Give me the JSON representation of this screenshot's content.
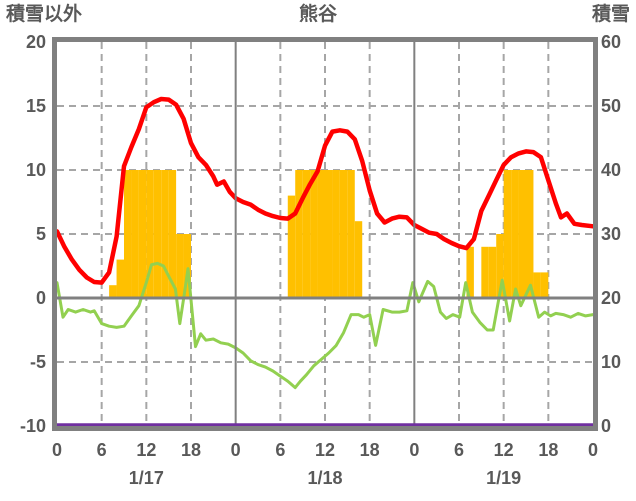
{
  "header": {
    "note": "weather chart for station Kumagaya, 3 days"
  },
  "colors": {
    "background": "#FFFFFF",
    "border": "#808080",
    "grid_dashed": "#A6A6A6",
    "zero_line": "#808080",
    "text": "#595959",
    "red_line": "#FF0000",
    "green_line": "#92D050",
    "orange_bars": "#FFC000",
    "purple_line": "#7030A0"
  },
  "chart_data": {
    "type": "combo",
    "title": "熊谷",
    "y_axis_left": {
      "title": "積雪以外",
      "min": -10,
      "max": 20,
      "tick_values": [
        20,
        15,
        10,
        5,
        0,
        -5,
        -10
      ],
      "tick_labels": [
        "20",
        "15",
        "10",
        "5",
        "0",
        "-5",
        "-10"
      ]
    },
    "y_axis_right": {
      "title": "積雪",
      "min": 0,
      "max": 60,
      "tick_values": [
        60,
        50,
        40,
        30,
        20,
        10,
        0
      ],
      "tick_labels": [
        "60",
        "50",
        "40",
        "30",
        "20",
        "10",
        "0"
      ]
    },
    "x_axis": {
      "unit": "hour",
      "min": 0,
      "max": 72,
      "tick_hours": [
        0,
        6,
        12,
        18,
        24,
        30,
        36,
        42,
        48,
        54,
        60,
        66,
        72
      ],
      "tick_labels": [
        "0",
        "6",
        "12",
        "18",
        "0",
        "6",
        "12",
        "18",
        "0",
        "6",
        "12",
        "18",
        "0"
      ],
      "day_labels": [
        {
          "label": "1/17",
          "center_hour": 12
        },
        {
          "label": "1/18",
          "center_hour": 36
        },
        {
          "label": "1/19",
          "center_hour": 60
        }
      ]
    },
    "grid": {
      "h_dashed_at": [
        15,
        10,
        5,
        -5
      ],
      "h_solid_at": [
        0
      ],
      "v_dashed_at": [
        6,
        12,
        18,
        30,
        36,
        42,
        54,
        60,
        66
      ],
      "v_solid_at": [
        24,
        48
      ]
    },
    "series": [
      {
        "id": "bars-orange",
        "type": "bar",
        "axis": "left",
        "color": "#FFC000",
        "bar_width_hours": 1,
        "data": [
          [
            7,
            1
          ],
          [
            8,
            3
          ],
          [
            9,
            10
          ],
          [
            10,
            10
          ],
          [
            11,
            10
          ],
          [
            12,
            10
          ],
          [
            13,
            10
          ],
          [
            14,
            10
          ],
          [
            15,
            10
          ],
          [
            16,
            5
          ],
          [
            17,
            5
          ],
          [
            31,
            8
          ],
          [
            32,
            10
          ],
          [
            33,
            10
          ],
          [
            34,
            10
          ],
          [
            35,
            10
          ],
          [
            36,
            10
          ],
          [
            37,
            10
          ],
          [
            38,
            10
          ],
          [
            39,
            10
          ],
          [
            40,
            6
          ],
          [
            55,
            4
          ],
          [
            57,
            4
          ],
          [
            58,
            4
          ],
          [
            59,
            5
          ],
          [
            60,
            10
          ],
          [
            61,
            10
          ],
          [
            62,
            10
          ],
          [
            63,
            10
          ],
          [
            64,
            2
          ],
          [
            65,
            2
          ]
        ]
      },
      {
        "id": "line-purple",
        "type": "line",
        "axis": "right",
        "color": "#7030A0",
        "width": 3.5,
        "data": [
          [
            0,
            0
          ],
          [
            72,
            0
          ]
        ]
      },
      {
        "id": "line-green",
        "type": "line",
        "axis": "left",
        "color": "#92D050",
        "width": 3,
        "data": [
          [
            0,
            1.2
          ],
          [
            0.8,
            -1.5
          ],
          [
            1.5,
            -0.9
          ],
          [
            2.5,
            -1.1
          ],
          [
            3.5,
            -0.9
          ],
          [
            4.5,
            -1.1
          ],
          [
            5,
            -1.0
          ],
          [
            6,
            -2.0
          ],
          [
            7,
            -2.2
          ],
          [
            8,
            -2.3
          ],
          [
            9,
            -2.2
          ],
          [
            10,
            -1.4
          ],
          [
            11,
            -0.6
          ],
          [
            12,
            1.2
          ],
          [
            12.7,
            2.6
          ],
          [
            13.5,
            2.7
          ],
          [
            14.3,
            2.5
          ],
          [
            15,
            1.7
          ],
          [
            15.9,
            0.7
          ],
          [
            16.5,
            -2.0
          ],
          [
            17.1,
            0.3
          ],
          [
            17.6,
            2.3
          ],
          [
            18.6,
            -3.8
          ],
          [
            19.3,
            -2.8
          ],
          [
            20,
            -3.3
          ],
          [
            21,
            -3.2
          ],
          [
            22,
            -3.5
          ],
          [
            23,
            -3.6
          ],
          [
            24,
            -3.9
          ],
          [
            25,
            -4.3
          ],
          [
            26,
            -4.9
          ],
          [
            27,
            -5.2
          ],
          [
            28,
            -5.4
          ],
          [
            29,
            -5.7
          ],
          [
            30,
            -6.1
          ],
          [
            31,
            -6.5
          ],
          [
            32,
            -7.0
          ],
          [
            32.7,
            -6.5
          ],
          [
            33.5,
            -6.0
          ],
          [
            34.5,
            -5.3
          ],
          [
            35.5,
            -4.8
          ],
          [
            36.5,
            -4.3
          ],
          [
            37.5,
            -3.7
          ],
          [
            38.5,
            -2.7
          ],
          [
            39.5,
            -1.3
          ],
          [
            40.5,
            -1.3
          ],
          [
            41.2,
            -1.5
          ],
          [
            42,
            -1.3
          ],
          [
            42.8,
            -3.7
          ],
          [
            43.8,
            -0.9
          ],
          [
            45,
            -1.1
          ],
          [
            46,
            -1.1
          ],
          [
            47,
            -1.0
          ],
          [
            47.8,
            1.2
          ],
          [
            48.6,
            -0.3
          ],
          [
            49.8,
            1.3
          ],
          [
            50.6,
            0.9
          ],
          [
            51.5,
            -1.1
          ],
          [
            52.3,
            -1.6
          ],
          [
            53.2,
            -1.3
          ],
          [
            54.1,
            -1.5
          ],
          [
            54.9,
            1.2
          ],
          [
            55.8,
            -1.1
          ],
          [
            56.8,
            -1.9
          ],
          [
            57.8,
            -2.5
          ],
          [
            58.6,
            -2.5
          ],
          [
            59.8,
            1.4
          ],
          [
            60.8,
            -1.8
          ],
          [
            61.6,
            0.7
          ],
          [
            62.3,
            -0.6
          ],
          [
            63.6,
            1.0
          ],
          [
            64.7,
            -1.5
          ],
          [
            65.5,
            -1.1
          ],
          [
            66.3,
            -1.4
          ],
          [
            67,
            -1.2
          ],
          [
            68,
            -1.3
          ],
          [
            69,
            -1.5
          ],
          [
            70,
            -1.2
          ],
          [
            71,
            -1.4
          ],
          [
            72,
            -1.3
          ]
        ]
      },
      {
        "id": "line-red",
        "type": "line",
        "axis": "left",
        "color": "#FF0000",
        "width": 4.5,
        "data": [
          [
            0,
            5.2
          ],
          [
            1,
            4.0
          ],
          [
            2,
            3.0
          ],
          [
            3,
            2.2
          ],
          [
            4,
            1.6
          ],
          [
            5,
            1.25
          ],
          [
            6,
            1.2
          ],
          [
            7,
            2.0
          ],
          [
            8,
            4.8
          ],
          [
            9,
            10.3
          ],
          [
            10,
            11.8
          ],
          [
            11,
            13.2
          ],
          [
            12,
            14.9
          ],
          [
            13,
            15.3
          ],
          [
            14,
            15.55
          ],
          [
            15,
            15.5
          ],
          [
            16,
            15.1
          ],
          [
            17,
            14.0
          ],
          [
            18,
            12.1
          ],
          [
            19,
            11.0
          ],
          [
            20,
            10.4
          ],
          [
            21,
            9.5
          ],
          [
            21.5,
            8.85
          ],
          [
            22.4,
            9.1
          ],
          [
            23.2,
            8.3
          ],
          [
            24,
            7.8
          ],
          [
            25,
            7.5
          ],
          [
            26,
            7.3
          ],
          [
            27,
            6.9
          ],
          [
            28,
            6.6
          ],
          [
            29,
            6.4
          ],
          [
            30,
            6.25
          ],
          [
            31,
            6.2
          ],
          [
            32,
            6.6
          ],
          [
            33,
            7.8
          ],
          [
            34,
            8.9
          ],
          [
            35,
            9.9
          ],
          [
            36,
            11.9
          ],
          [
            37,
            13.0
          ],
          [
            38,
            13.1
          ],
          [
            39,
            13.0
          ],
          [
            40,
            12.4
          ],
          [
            41,
            10.7
          ],
          [
            42,
            8.4
          ],
          [
            43,
            6.6
          ],
          [
            44,
            5.9
          ],
          [
            45,
            6.2
          ],
          [
            46,
            6.35
          ],
          [
            47,
            6.3
          ],
          [
            48,
            5.7
          ],
          [
            49,
            5.4
          ],
          [
            50,
            5.1
          ],
          [
            51,
            5.0
          ],
          [
            52,
            4.6
          ],
          [
            53,
            4.3
          ],
          [
            54,
            4.05
          ],
          [
            55,
            3.9
          ],
          [
            56,
            4.6
          ],
          [
            57,
            6.8
          ],
          [
            58,
            8.0
          ],
          [
            59,
            9.2
          ],
          [
            60,
            10.4
          ],
          [
            61,
            11.0
          ],
          [
            62,
            11.3
          ],
          [
            63,
            11.45
          ],
          [
            64,
            11.4
          ],
          [
            65,
            11.0
          ],
          [
            66,
            9.2
          ],
          [
            67,
            7.4
          ],
          [
            67.7,
            6.3
          ],
          [
            68.5,
            6.6
          ],
          [
            69.5,
            5.8
          ],
          [
            70.5,
            5.7
          ],
          [
            72,
            5.6
          ]
        ]
      }
    ]
  }
}
